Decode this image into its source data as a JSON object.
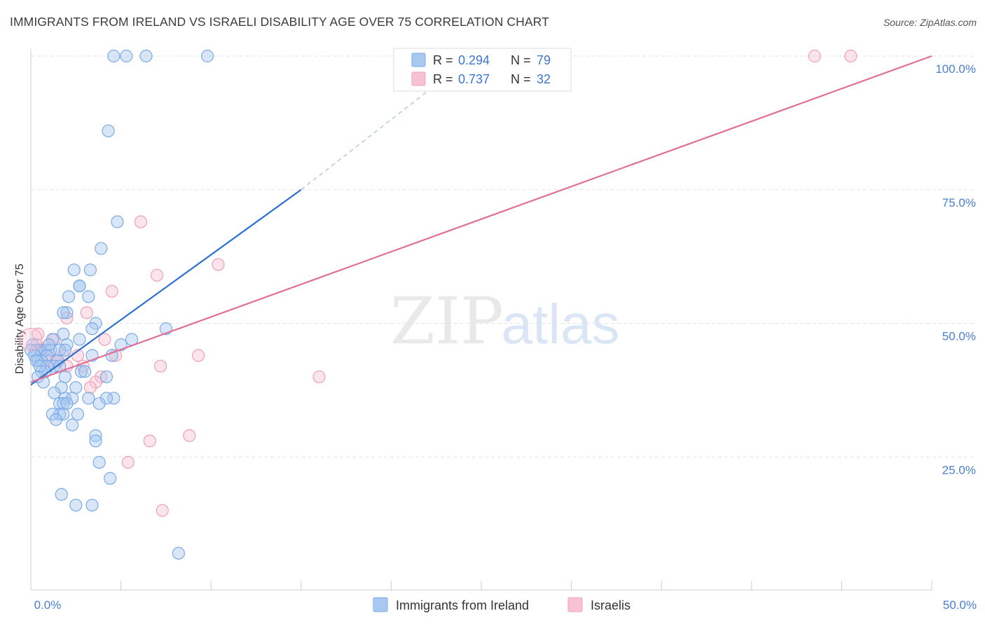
{
  "header": {
    "title": "IMMIGRANTS FROM IRELAND VS ISRAELI DISABILITY AGE OVER 75 CORRELATION CHART",
    "source": "Source: ZipAtlas.com"
  },
  "watermark": {
    "zip": "ZIP",
    "atlas": "atlas"
  },
  "legend_top": [
    {
      "r_label": "R =",
      "r_value": "0.294",
      "n_label": "N =",
      "n_value": "79",
      "color": "#7aaae8"
    },
    {
      "r_label": "R =",
      "r_value": "0.737",
      "n_label": "N =",
      "n_value": "32",
      "color": "#f0a0b8"
    }
  ],
  "legend_bottom": [
    {
      "label": "Immigrants from Ireland",
      "color": "#7aaae8"
    },
    {
      "label": "Israelis",
      "color": "#f0a0b8"
    }
  ],
  "colors": {
    "blue_fill": "#a9c8f0",
    "blue_stroke": "#7aaae8",
    "blue_line": "#2a6fcf",
    "pink_fill": "#f7c3d3",
    "pink_stroke": "#ef9fb7",
    "pink_line": "#e07096",
    "tick_label": "#4a7fcf",
    "grid": "#e3e3e3"
  },
  "chart_data": {
    "type": "scatter",
    "title": "IMMIGRANTS FROM IRELAND VS ISRAELI DISABILITY AGE OVER 75 CORRELATION CHART",
    "xlabel": "",
    "ylabel": "Disability Age Over 75",
    "xlim": [
      0,
      50
    ],
    "ylim": [
      0,
      100
    ],
    "x_tick_labels": [
      "0.0%",
      "50.0%"
    ],
    "y_ticks": [
      25,
      50,
      75,
      100
    ],
    "y_tick_labels": [
      "25.0%",
      "50.0%",
      "75.0%",
      "100.0%"
    ],
    "grid": true,
    "legend_position": "top-center",
    "series": [
      {
        "name": "Immigrants from Ireland",
        "R": 0.294,
        "N": 79,
        "trend": {
          "x0": 0,
          "y0": 38.5,
          "x1": 15,
          "y1": 75,
          "dashed_to": [
            23,
            96
          ]
        },
        "points": [
          [
            4.6,
            100
          ],
          [
            5.3,
            100
          ],
          [
            6.4,
            100
          ],
          [
            9.8,
            100
          ],
          [
            4.3,
            86
          ],
          [
            4.8,
            69
          ],
          [
            3.9,
            64
          ],
          [
            3.3,
            60
          ],
          [
            2.4,
            60
          ],
          [
            2.7,
            57
          ],
          [
            2.7,
            57
          ],
          [
            2.1,
            55
          ],
          [
            3.2,
            55
          ],
          [
            2.0,
            52
          ],
          [
            1.8,
            52
          ],
          [
            3.6,
            50
          ],
          [
            7.5,
            49
          ],
          [
            3.4,
            49
          ],
          [
            1.8,
            48
          ],
          [
            1.2,
            47
          ],
          [
            2.7,
            47
          ],
          [
            5.6,
            47
          ],
          [
            5.0,
            46
          ],
          [
            2.0,
            46
          ],
          [
            0.1,
            46
          ],
          [
            0.5,
            45
          ],
          [
            0.8,
            45
          ],
          [
            1.1,
            45
          ],
          [
            1.6,
            45
          ],
          [
            1.9,
            45
          ],
          [
            0.3,
            45
          ],
          [
            0.9,
            44
          ],
          [
            3.4,
            44
          ],
          [
            4.5,
            44
          ],
          [
            0.4,
            43
          ],
          [
            0.6,
            43
          ],
          [
            1.5,
            43
          ],
          [
            0.9,
            42
          ],
          [
            1.3,
            42
          ],
          [
            1.6,
            42
          ],
          [
            0.6,
            41
          ],
          [
            0.8,
            41
          ],
          [
            2.8,
            41
          ],
          [
            0.4,
            40
          ],
          [
            3.0,
            41
          ],
          [
            1.9,
            40
          ],
          [
            4.2,
            40
          ],
          [
            0.7,
            39
          ],
          [
            1.7,
            38
          ],
          [
            2.5,
            38
          ],
          [
            1.3,
            37
          ],
          [
            1.9,
            36
          ],
          [
            4.6,
            36
          ],
          [
            4.2,
            36
          ],
          [
            3.2,
            36
          ],
          [
            2.3,
            36
          ],
          [
            1.6,
            35
          ],
          [
            1.8,
            35
          ],
          [
            3.8,
            35
          ],
          [
            2.0,
            35
          ],
          [
            1.6,
            33
          ],
          [
            1.8,
            33
          ],
          [
            1.2,
            33
          ],
          [
            2.6,
            33
          ],
          [
            1.4,
            32
          ],
          [
            2.3,
            31
          ],
          [
            3.6,
            29
          ],
          [
            3.6,
            28
          ],
          [
            3.8,
            24
          ],
          [
            4.4,
            21
          ],
          [
            1.7,
            18
          ],
          [
            3.4,
            16
          ],
          [
            2.5,
            16
          ],
          [
            8.2,
            7
          ],
          [
            0.0,
            45
          ],
          [
            0.2,
            44
          ],
          [
            0.3,
            43
          ],
          [
            0.5,
            42
          ],
          [
            1.0,
            46
          ]
        ]
      },
      {
        "name": "Israelis",
        "R": 0.737,
        "N": 32,
        "trend": {
          "x0": 0,
          "y0": 39,
          "x1": 50,
          "y1": 100
        },
        "points": [
          [
            43.5,
            100
          ],
          [
            45.5,
            100
          ],
          [
            6.1,
            69
          ],
          [
            10.4,
            61
          ],
          [
            7.0,
            59
          ],
          [
            4.5,
            56
          ],
          [
            3.1,
            52
          ],
          [
            2.0,
            51
          ],
          [
            4.1,
            47
          ],
          [
            1.3,
            47
          ],
          [
            0.4,
            48
          ],
          [
            1.0,
            46
          ],
          [
            0.6,
            45
          ],
          [
            0.3,
            46
          ],
          [
            1.1,
            43
          ],
          [
            0.9,
            44
          ],
          [
            1.8,
            44
          ],
          [
            9.3,
            44
          ],
          [
            2.6,
            44
          ],
          [
            4.7,
            44
          ],
          [
            1.4,
            43
          ],
          [
            2.0,
            42
          ],
          [
            2.9,
            42
          ],
          [
            7.2,
            42
          ],
          [
            16.0,
            40
          ],
          [
            3.9,
            40
          ],
          [
            3.6,
            39
          ],
          [
            3.3,
            38
          ],
          [
            8.8,
            29
          ],
          [
            6.6,
            28
          ],
          [
            5.4,
            24
          ],
          [
            7.3,
            15
          ]
        ]
      }
    ]
  }
}
